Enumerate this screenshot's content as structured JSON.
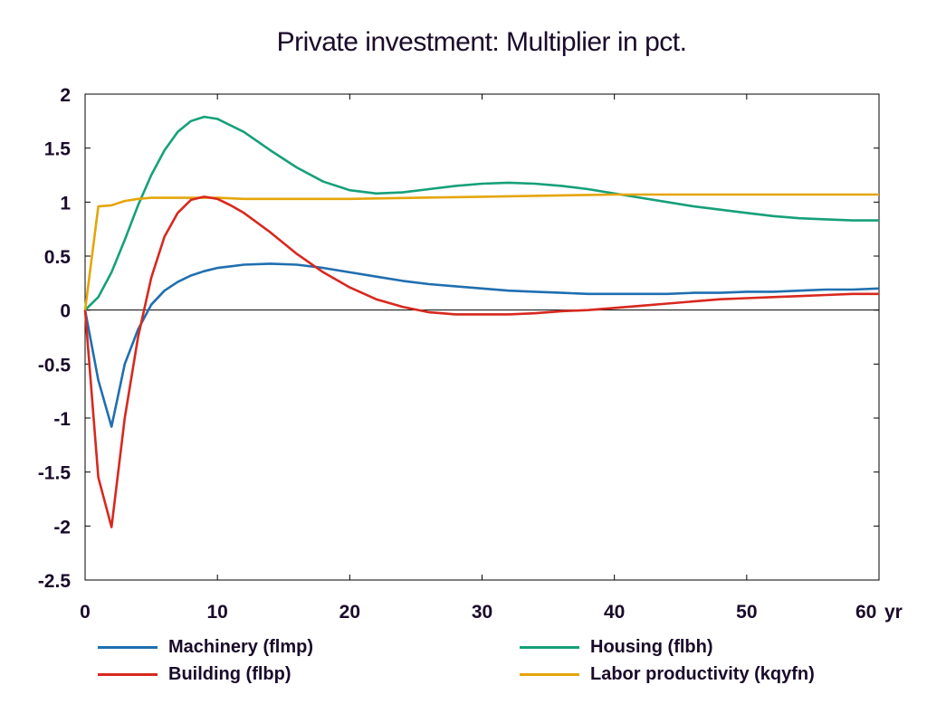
{
  "chart_data": {
    "type": "line",
    "title": "Private investment: Multiplier in pct.",
    "xlabel": "",
    "ylabel": "",
    "x_unit": "yr",
    "xlim": [
      0,
      60
    ],
    "ylim": [
      -2.5,
      2
    ],
    "xticks": [
      0,
      10,
      20,
      30,
      40,
      50,
      60
    ],
    "yticks": [
      -2.5,
      -2,
      -1.5,
      -1,
      -0.5,
      0,
      0.5,
      1,
      1.5,
      2
    ],
    "grid": false,
    "legend_position": "bottom",
    "series": [
      {
        "name": "Machinery (flmp)",
        "color": "#1f6fb0",
        "x": [
          0,
          1,
          2,
          3,
          4,
          5,
          6,
          7,
          8,
          9,
          10,
          12,
          14,
          16,
          18,
          20,
          22,
          24,
          26,
          28,
          30,
          32,
          34,
          36,
          38,
          40,
          42,
          44,
          46,
          48,
          50,
          52,
          54,
          56,
          58,
          60
        ],
        "y": [
          0,
          -0.65,
          -1.08,
          -0.5,
          -0.18,
          0.05,
          0.18,
          0.26,
          0.32,
          0.36,
          0.39,
          0.42,
          0.43,
          0.42,
          0.39,
          0.35,
          0.31,
          0.27,
          0.24,
          0.22,
          0.2,
          0.18,
          0.17,
          0.16,
          0.15,
          0.15,
          0.15,
          0.15,
          0.16,
          0.16,
          0.17,
          0.17,
          0.18,
          0.19,
          0.19,
          0.2
        ]
      },
      {
        "name": "Building (flbp)",
        "color": "#d8281e",
        "x": [
          0,
          1,
          2,
          3,
          4,
          5,
          6,
          7,
          8,
          9,
          10,
          11,
          12,
          14,
          16,
          18,
          20,
          22,
          24,
          26,
          28,
          30,
          32,
          34,
          36,
          38,
          40,
          42,
          44,
          46,
          48,
          50,
          52,
          54,
          56,
          58,
          60
        ],
        "y": [
          0,
          -1.55,
          -2.01,
          -1.0,
          -0.25,
          0.3,
          0.68,
          0.9,
          1.02,
          1.05,
          1.03,
          0.97,
          0.9,
          0.72,
          0.52,
          0.35,
          0.21,
          0.1,
          0.03,
          -0.02,
          -0.04,
          -0.04,
          -0.04,
          -0.03,
          -0.01,
          0.0,
          0.02,
          0.04,
          0.06,
          0.08,
          0.1,
          0.11,
          0.12,
          0.13,
          0.14,
          0.15,
          0.15
        ]
      },
      {
        "name": "Housing (flbh)",
        "color": "#16a07a",
        "x": [
          0,
          1,
          2,
          3,
          4,
          5,
          6,
          7,
          8,
          9,
          10,
          12,
          14,
          16,
          18,
          20,
          22,
          24,
          26,
          28,
          30,
          32,
          34,
          36,
          38,
          40,
          42,
          44,
          46,
          48,
          50,
          52,
          54,
          56,
          58,
          60
        ],
        "y": [
          0,
          0.12,
          0.35,
          0.65,
          0.97,
          1.25,
          1.48,
          1.65,
          1.75,
          1.79,
          1.77,
          1.65,
          1.48,
          1.32,
          1.19,
          1.11,
          1.08,
          1.09,
          1.12,
          1.15,
          1.17,
          1.18,
          1.17,
          1.15,
          1.12,
          1.08,
          1.04,
          1.0,
          0.96,
          0.93,
          0.9,
          0.87,
          0.85,
          0.84,
          0.83,
          0.83
        ]
      },
      {
        "name": "Labor productivity (kqyfn)",
        "color": "#e5a50a",
        "x": [
          0,
          1,
          2,
          3,
          4,
          5,
          6,
          8,
          10,
          12,
          14,
          16,
          20,
          25,
          30,
          35,
          40,
          45,
          50,
          55,
          60
        ],
        "y": [
          0,
          0.96,
          0.97,
          1.01,
          1.03,
          1.04,
          1.04,
          1.04,
          1.04,
          1.03,
          1.03,
          1.03,
          1.03,
          1.04,
          1.05,
          1.06,
          1.07,
          1.07,
          1.07,
          1.07,
          1.07
        ]
      }
    ]
  }
}
